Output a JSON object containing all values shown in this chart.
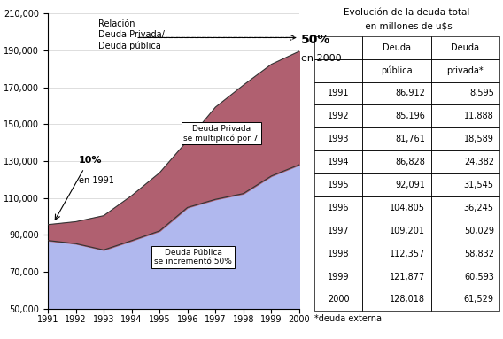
{
  "years": [
    1991,
    1992,
    1993,
    1994,
    1995,
    1996,
    1997,
    1998,
    1999,
    2000
  ],
  "deuda_publica": [
    86912,
    85196,
    81761,
    86828,
    92091,
    104805,
    109201,
    112357,
    121877,
    128018
  ],
  "deuda_privada": [
    8595,
    11888,
    18589,
    24382,
    31545,
    36245,
    50029,
    58832,
    60593,
    61529
  ],
  "ylim": [
    50000,
    210000
  ],
  "yticks": [
    50000,
    70000,
    90000,
    110000,
    130000,
    150000,
    170000,
    190000,
    210000
  ],
  "color_publica": "#b0b8ee",
  "color_privada": "#b06070",
  "color_outline": "#333333",
  "table_title_line1": "Evolución de la deuda total",
  "table_title_line2": " en millones de u$s",
  "table_rows": [
    [
      "1991",
      "86,912",
      "8,595"
    ],
    [
      "1992",
      "85,196",
      "11,888"
    ],
    [
      "1993",
      "81,761",
      "18,589"
    ],
    [
      "1994",
      "86,828",
      "24,382"
    ],
    [
      "1995",
      "92,091",
      "31,545"
    ],
    [
      "1996",
      "104,805",
      "36,245"
    ],
    [
      "1997",
      "109,201",
      "50,029"
    ],
    [
      "1998",
      "112,357",
      "58,832"
    ],
    [
      "1999",
      "121,877",
      "60,593"
    ],
    [
      "2000",
      "128,018",
      "61,529"
    ]
  ],
  "col_header_row1": [
    "",
    "Deuda",
    "Deuda"
  ],
  "col_header_row2": [
    "",
    "pública",
    "privada*"
  ],
  "footnote": "*deuda externa",
  "label_publica": "Deuda Pública\nse incrementó 50%",
  "label_privada": "Deuda Privada\nse multiplicó por 7",
  "annotation_relacion": "Relación\nDeuda Privada/\nDeuda pública",
  "annotation_10_bold": "10%",
  "annotation_10_normal": "en 1991",
  "annotation_50_bold": "50%",
  "annotation_50_normal": "en 2000"
}
